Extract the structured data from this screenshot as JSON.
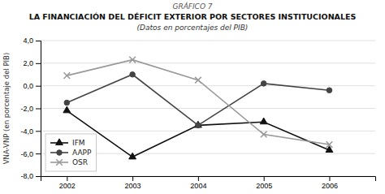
{
  "chart_data": {
    "type": "line",
    "annotations": [
      "GRÁFICO 7"
    ],
    "title": "LA FINANCIACIÓN DEL DÉFICIT EXTERIOR POR SECTORES INSTITUCIONALES",
    "subtitle": "(Datos en porcentajes del PIB)",
    "y_label": "VNA-VNP (en porcentaje del PIB)",
    "x": [
      2002,
      2003,
      2004,
      2005,
      2006
    ],
    "series": [
      {
        "name": "IFM",
        "color": "#111111",
        "marker": "triangle",
        "values": [
          -2.2,
          -6.3,
          -3.5,
          -3.2,
          -5.7
        ]
      },
      {
        "name": "AAPP",
        "color": "#444444",
        "marker": "circle",
        "values": [
          -1.5,
          1.0,
          -3.5,
          0.2,
          -0.4
        ]
      },
      {
        "name": "OSR",
        "color": "#999999",
        "marker": "x",
        "values": [
          0.9,
          2.3,
          0.5,
          -4.3,
          -5.2
        ]
      }
    ],
    "xlim": [
      2001.6,
      2006.7
    ],
    "xticks": [
      2002,
      2003,
      2004,
      2005,
      2006
    ],
    "ylim": [
      -8.0,
      4.0
    ],
    "yticks": [
      {
        "value": -8.0,
        "label": "-8,0"
      },
      {
        "value": -6.0,
        "label": "-6,0"
      },
      {
        "value": -4.0,
        "label": "-4,0"
      },
      {
        "value": -2.0,
        "label": "-2,0"
      },
      {
        "value": 0.0,
        "label": "0,0"
      },
      {
        "value": 2.0,
        "label": "2,0"
      },
      {
        "value": 4.0,
        "label": "4,0"
      }
    ],
    "grid": true,
    "legend": "lower left"
  }
}
